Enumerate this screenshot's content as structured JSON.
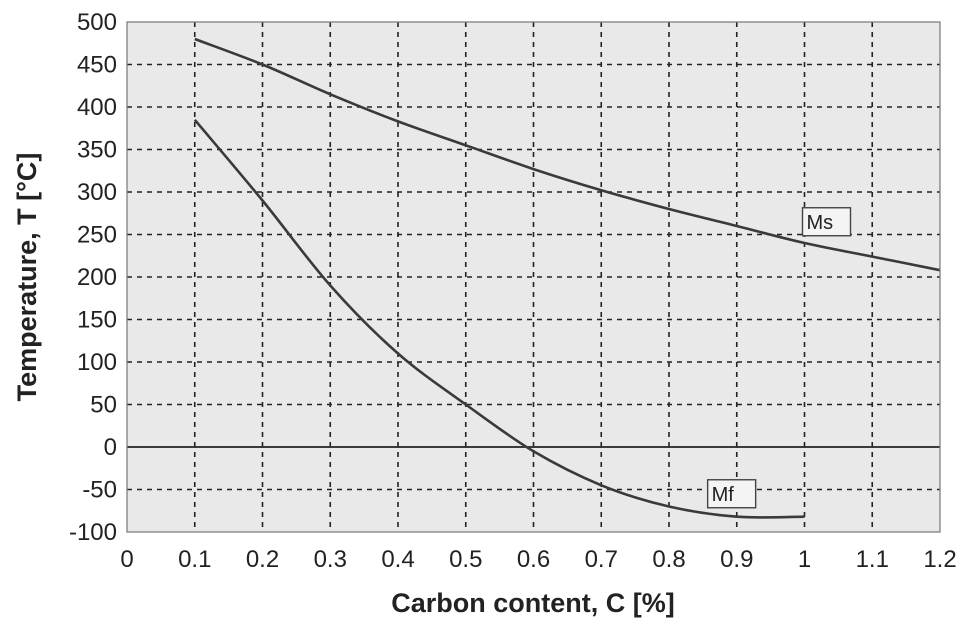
{
  "chart_data": {
    "type": "line",
    "title": "",
    "xlabel": "Carbon content, C [%]",
    "ylabel": "Temperature, T [°C]",
    "xlim": [
      0,
      1.2
    ],
    "ylim": [
      -100,
      500
    ],
    "x_ticks": [
      "0",
      "0.1",
      "0.2",
      "0.3",
      "0.4",
      "0.5",
      "0.6",
      "0.7",
      "0.8",
      "0.9",
      "1",
      "1.1",
      "1.2"
    ],
    "y_ticks": [
      "500",
      "450",
      "400",
      "350",
      "300",
      "250",
      "200",
      "150",
      "100",
      "50",
      "0",
      "-50",
      "-100"
    ],
    "grid": true,
    "series": [
      {
        "name": "Ms",
        "x": [
          0.1,
          0.2,
          0.3,
          0.4,
          0.5,
          0.6,
          0.7,
          0.8,
          0.9,
          1.0,
          1.1,
          1.2
        ],
        "y": [
          480,
          450,
          415,
          383,
          355,
          327,
          302,
          280,
          260,
          240,
          224,
          208
        ]
      },
      {
        "name": "Mf",
        "x": [
          0.1,
          0.2,
          0.3,
          0.4,
          0.5,
          0.6,
          0.7,
          0.8,
          0.9,
          1.0
        ],
        "y": [
          385,
          290,
          190,
          110,
          50,
          -5,
          -45,
          -70,
          -82,
          -82
        ]
      }
    ]
  },
  "colors": {
    "plot_background": "#e9e9e9",
    "curve": "#3a3a3a",
    "grid": "#222222"
  }
}
